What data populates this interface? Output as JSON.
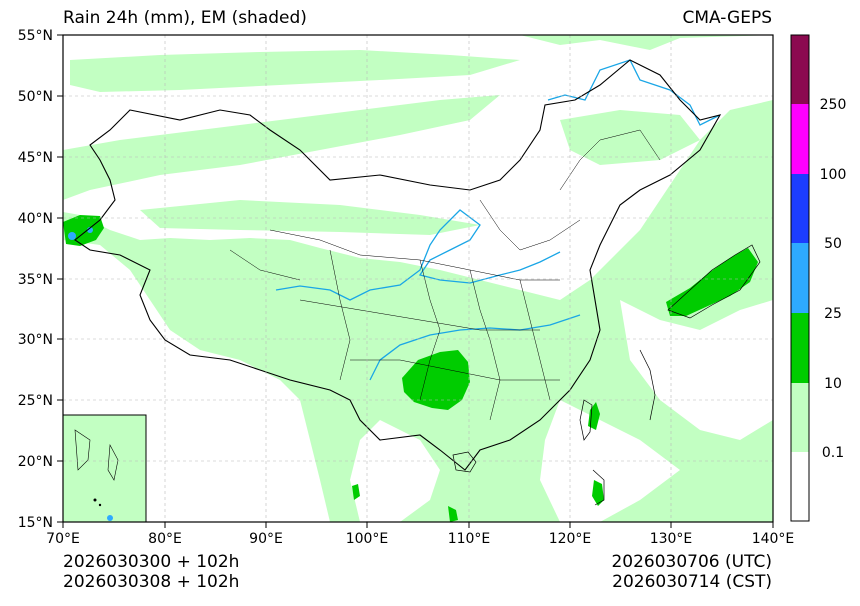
{
  "header": {
    "title": "Rain 24h (mm), EM (shaded)",
    "source": "CMA-GEPS"
  },
  "map": {
    "lat_range": [
      15,
      55
    ],
    "lon_range": [
      70,
      140
    ],
    "lat_ticks": [
      "55°N",
      "50°N",
      "45°N",
      "40°N",
      "35°N",
      "30°N",
      "25°N",
      "20°N",
      "15°N"
    ],
    "lon_ticks": [
      "70°E",
      "80°E",
      "90°E",
      "100°E",
      "110°E",
      "120°E",
      "130°E",
      "140°E"
    ]
  },
  "colorbar": {
    "labels": [
      "0.1",
      "10",
      "25",
      "50",
      "100",
      "250"
    ],
    "colors": [
      "#ffffff",
      "#c2ffc2",
      "#00cc00",
      "#2eaaff",
      "#1c3dff",
      "#ff00ff",
      "#8b0a50"
    ]
  },
  "colors": {
    "light_rain": "#c2ffc2",
    "moderate_rain": "#00cc00",
    "heavy_rain": "#2eaaff",
    "river": "#1aa6e6"
  },
  "footer": {
    "init_utc": "2026030300 + 102h",
    "init_cst": "2026030308 + 102h",
    "valid_utc": "2026030706 (UTC)",
    "valid_cst": "2026030714 (CST)"
  }
}
